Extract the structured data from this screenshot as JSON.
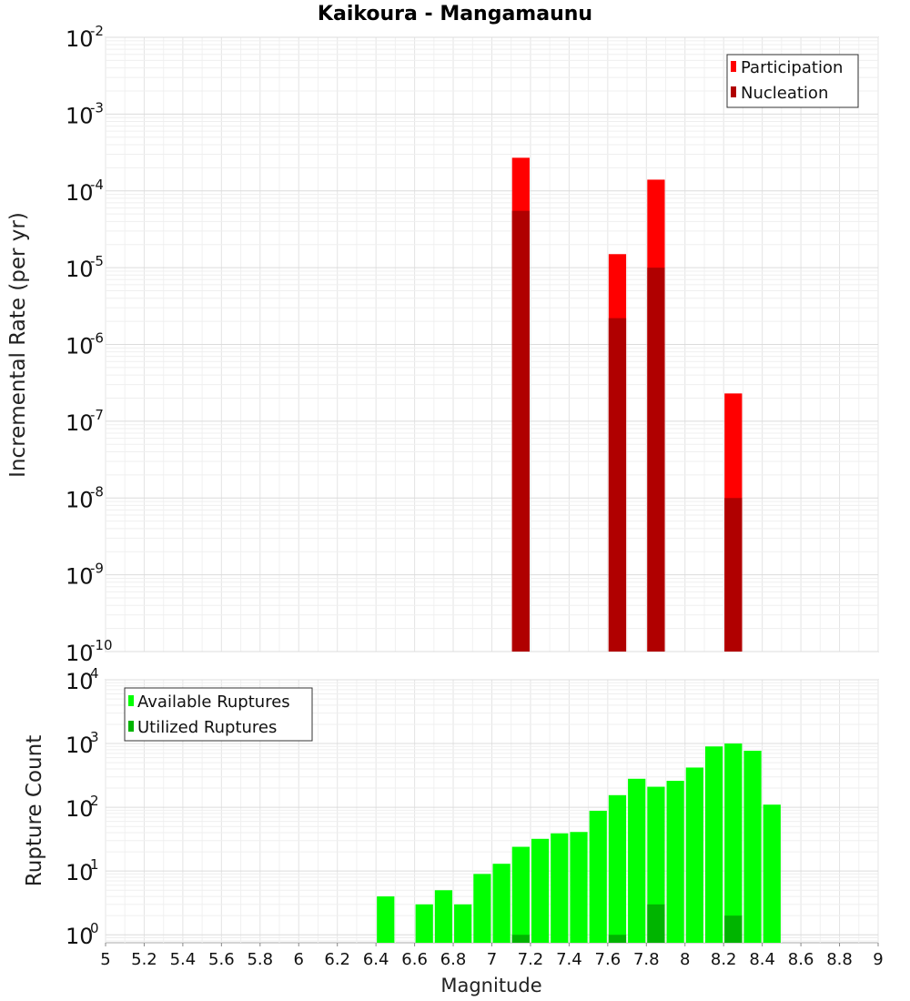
{
  "chart_data": [
    {
      "type": "bar",
      "title": "Kaikoura - Mangamaunu",
      "ylabel": "Incremental Rate (per yr)",
      "yscale": "log",
      "ylim": [
        1e-10,
        0.01
      ],
      "xlim": [
        5,
        9
      ],
      "bar_width": 0.1,
      "yticks": [
        "10",
        "10",
        "10",
        "10",
        "10",
        "10",
        "10",
        "10",
        "10"
      ],
      "yexponents": [
        "-10",
        "-9",
        "-8",
        "-7",
        "-6",
        "-5",
        "-4",
        "-3",
        "-2"
      ],
      "grid": true,
      "legend_position": "top-right",
      "series": [
        {
          "name": "Participation",
          "color": "#ff0000",
          "x": [
            7.15,
            7.65,
            7.85,
            8.25
          ],
          "values": [
            0.00027,
            1.5e-05,
            0.00014,
            2.3e-07
          ]
        },
        {
          "name": "Nucleation",
          "color": "#b00000",
          "x": [
            7.15,
            7.65,
            7.85,
            8.25
          ],
          "values": [
            5.5e-05,
            2.2e-06,
            1e-05,
            1e-08
          ]
        }
      ]
    },
    {
      "type": "bar",
      "xlabel": "Magnitude",
      "ylabel": "Rupture Count",
      "yscale": "log",
      "ylim": [
        0.75,
        10000
      ],
      "xlim": [
        5,
        9
      ],
      "bar_width": 0.1,
      "xticks": [
        "5",
        "5.2",
        "5.4",
        "5.6",
        "5.8",
        "6",
        "6.2",
        "6.4",
        "6.6",
        "6.8",
        "7",
        "7.2",
        "7.4",
        "7.6",
        "7.8",
        "8",
        "8.2",
        "8.4",
        "8.6",
        "8.8",
        "9"
      ],
      "yticks": [
        "10",
        "10",
        "10",
        "10",
        "10"
      ],
      "yexponents": [
        "0",
        "1",
        "2",
        "3",
        "4"
      ],
      "grid": true,
      "legend_position": "top-left",
      "series": [
        {
          "name": "Available Ruptures",
          "color": "#00ff00",
          "x": [
            6.45,
            6.65,
            6.75,
            6.85,
            6.95,
            7.05,
            7.15,
            7.25,
            7.35,
            7.45,
            7.55,
            7.65,
            7.75,
            7.85,
            7.95,
            8.05,
            8.15,
            8.25,
            8.35,
            8.45
          ],
          "values": [
            4,
            3,
            5,
            3,
            9,
            13,
            24,
            32,
            39,
            41,
            88,
            155,
            280,
            210,
            260,
            420,
            900,
            1000,
            770,
            110
          ]
        },
        {
          "name": "Utilized Ruptures",
          "color": "#00b400",
          "x": [
            7.15,
            7.65,
            7.85,
            8.25
          ],
          "values": [
            1,
            1,
            3,
            2
          ]
        }
      ]
    }
  ]
}
